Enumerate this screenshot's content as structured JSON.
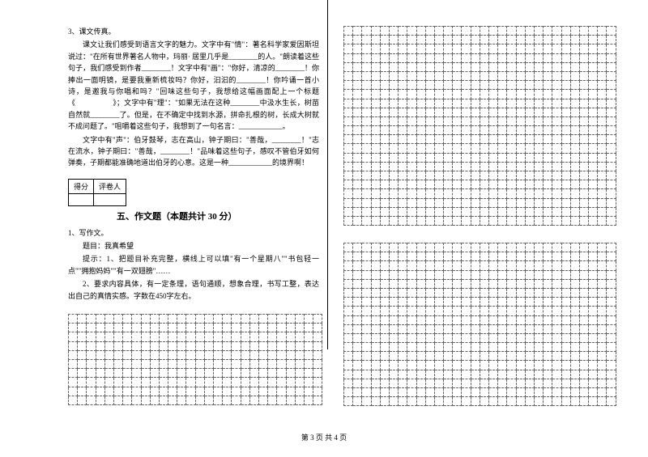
{
  "q3": {
    "num": "3、课文传真。",
    "p1": "课文让我们感受到语言文字的魅力。文字中有\"情\"：著名科学家爱因斯坦说过：\"在所有世界著名人物中，玛丽· 居里几乎是________的人。\"朗读着这些句子，我们感受到作者________！文字中有\"画\"：\"你好，清凉的________！你捧出一面明镜，是要我重新梳妆吗？你好，汩汩的________！你吟诵一首小诗，是邀我与你唱和吗？\"回味这些句子，我想给这幅画面配上一个标题《　　　　　》；文字中有\"理\"：\"如果无法在这种________中汲水生长，树苗自然就________了。但是，在不确定中找到水源，拼命扎根的树，长成大树就不成问题了。\"咀嚼着这些句子，我想到了一句名言：____________。",
    "p2": "文字中有\"声\"：伯牙鼓琴，志在高山，钟子期曰：\"善哉，________！\"志在流水，钟子期曰：\"善哉，________！\"品味着这些句子，感叹不管伯牙如何弹奏，子期都能准确地道出伯牙的心意。这是一种____________的境界啊！"
  },
  "scorebox": {
    "col1": "得分",
    "col2": "评卷人"
  },
  "section5": "五、作文题（本题共计 30 分）",
  "essay": {
    "num": "1、写作文。",
    "line1": "题目：我真希望",
    "line2": "提示：1、把题目补充完整，横线上可以填\"有一个星期八\"\"书包轻一点\"\"拥抱妈妈\"\"有一双翅膀\"……",
    "line3": "2、要求内容具体，有一定条理，语句通顺，想象合理，书写工整，表达出自己的真情实感。字数在450字左右。"
  },
  "footer": "第 3 页  共 4 页",
  "grids": {
    "top_right": {
      "rows": 22,
      "cols": 30
    },
    "bottom_left": {
      "rows": 10,
      "cols": 28
    },
    "bottom_right": {
      "rows": 18,
      "cols": 30
    }
  }
}
